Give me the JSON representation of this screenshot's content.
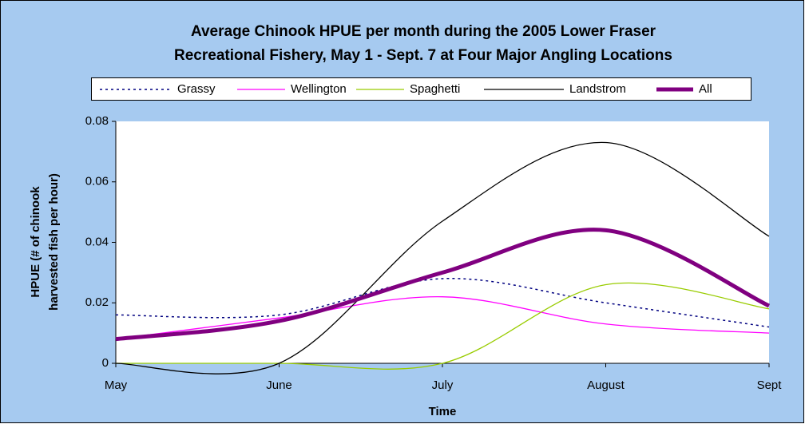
{
  "chart_data": {
    "type": "line",
    "title": [
      "Average Chinook HPUE per month during the 2005 Lower Fraser",
      "Recreational Fishery, May 1 - Sept. 7 at Four Major Angling Locations"
    ],
    "x_label": "Time",
    "y_label": [
      "HPUE (# of chinook",
      "harvested fish per hour)"
    ],
    "categories": [
      "May",
      "June",
      "July",
      "August",
      "Sept"
    ],
    "series": [
      {
        "name": "Grassy",
        "color": "#000080",
        "values": [
          0.016,
          0.016,
          0.028,
          0.02,
          0.012
        ]
      },
      {
        "name": "Wellington",
        "color": "#ff00ff",
        "values": [
          0.008,
          0.015,
          0.022,
          0.013,
          0.01
        ]
      },
      {
        "name": "Spaghetti",
        "color": "#99cc00",
        "values": [
          0,
          0,
          0,
          0.026,
          0.018
        ]
      },
      {
        "name": "Landstrom",
        "color": "#000000",
        "values": [
          0,
          0,
          0.047,
          0.073,
          0.042
        ]
      },
      {
        "name": "All",
        "color": "#800080",
        "values": [
          0.008,
          0.014,
          0.03,
          0.044,
          0.019
        ]
      }
    ],
    "ylim": [
      0,
      0.08
    ],
    "yticks": [
      0,
      0.02,
      0.04,
      0.06,
      0.08
    ],
    "legend": "top",
    "grid": false
  }
}
